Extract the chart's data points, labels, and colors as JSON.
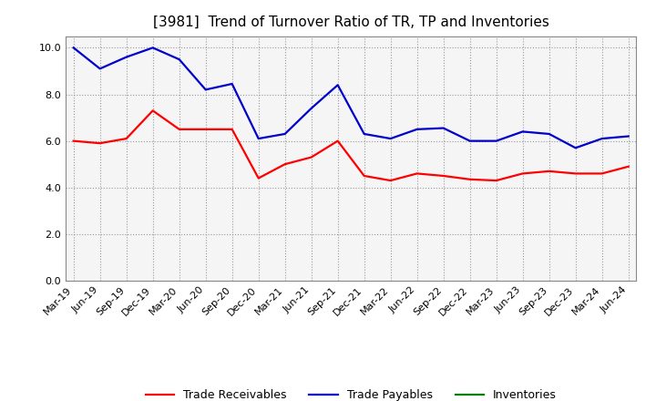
{
  "title": "[3981]  Trend of Turnover Ratio of TR, TP and Inventories",
  "x_labels": [
    "Mar-19",
    "Jun-19",
    "Sep-19",
    "Dec-19",
    "Mar-20",
    "Jun-20",
    "Sep-20",
    "Dec-20",
    "Mar-21",
    "Jun-21",
    "Sep-21",
    "Dec-21",
    "Mar-22",
    "Jun-22",
    "Sep-22",
    "Dec-22",
    "Mar-23",
    "Jun-23",
    "Sep-23",
    "Dec-23",
    "Mar-24",
    "Jun-24"
  ],
  "trade_receivables": [
    6.0,
    5.9,
    6.1,
    7.3,
    6.5,
    6.5,
    6.5,
    4.4,
    5.0,
    5.3,
    6.0,
    4.5,
    4.3,
    4.6,
    4.5,
    4.35,
    4.3,
    4.6,
    4.7,
    4.6,
    4.6,
    4.9
  ],
  "trade_payables": [
    10.0,
    9.1,
    9.6,
    10.0,
    9.5,
    8.2,
    8.45,
    6.1,
    6.3,
    7.4,
    8.4,
    6.3,
    6.1,
    6.5,
    6.55,
    6.0,
    6.0,
    6.4,
    6.3,
    5.7,
    6.1,
    6.2
  ],
  "inventories": [
    null,
    null,
    null,
    null,
    null,
    null,
    null,
    null,
    null,
    null,
    null,
    null,
    null,
    null,
    null,
    null,
    null,
    null,
    null,
    null,
    null,
    null
  ],
  "tr_color": "#ff0000",
  "tp_color": "#0000cc",
  "inv_color": "#008000",
  "ylim": [
    0.0,
    10.5
  ],
  "yticks": [
    0.0,
    2.0,
    4.0,
    6.0,
    8.0,
    10.0
  ],
  "background_color": "#ffffff",
  "plot_bg_color": "#f5f5f5",
  "grid_color": "#999999",
  "title_fontsize": 11,
  "legend_fontsize": 9,
  "tick_fontsize": 8
}
